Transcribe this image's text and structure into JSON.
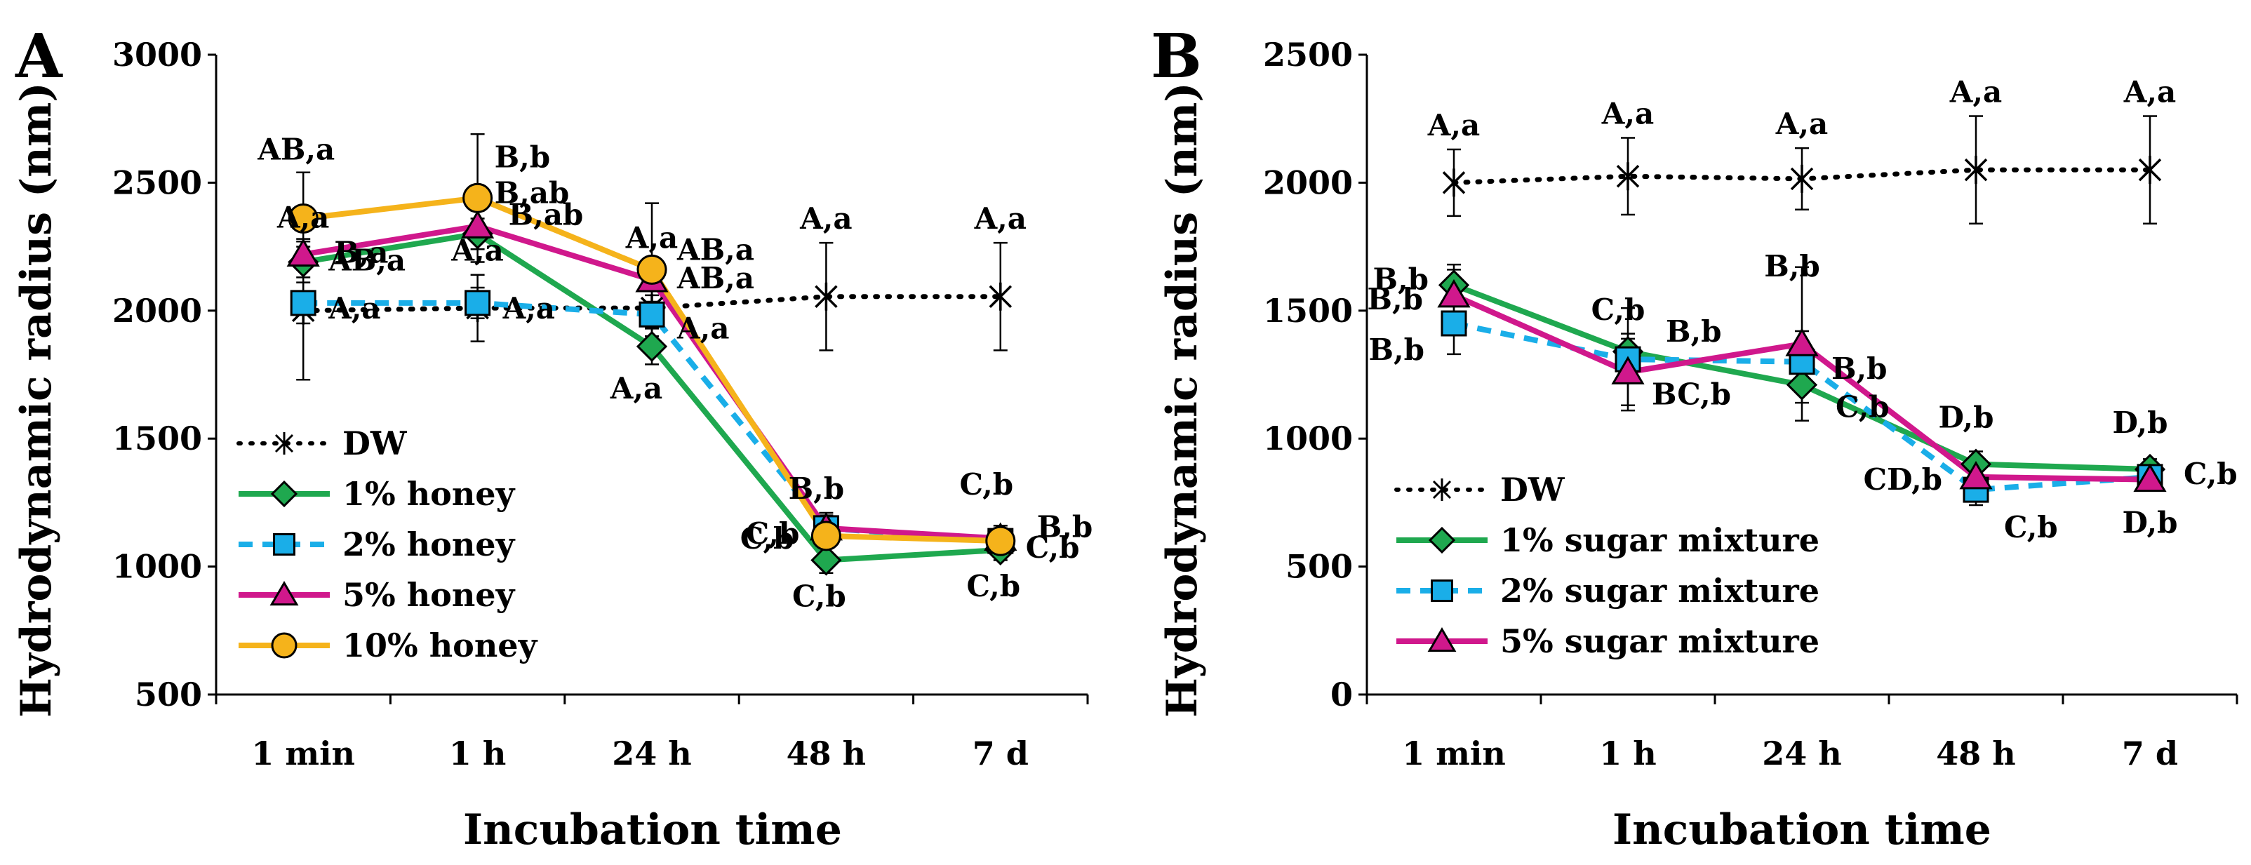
{
  "chart_data": [
    {
      "panel": "A",
      "type": "line",
      "xlabel": "Incubation time",
      "ylabel": "Hydrodynamic radius (nm)",
      "categories": [
        "1 min",
        "1 h",
        "24 h",
        "48 h",
        "7 d"
      ],
      "ylim": [
        500,
        3000
      ],
      "yticks": [
        500,
        1000,
        1500,
        2000,
        2500,
        3000
      ],
      "yticks_text": [
        "500",
        "1000",
        "1500",
        "2000",
        "2500",
        "3000"
      ],
      "grid": false,
      "legend_position": "bottom-left",
      "series": [
        {
          "name": "DW",
          "style": "dotted",
          "color": "#000000",
          "marker": "asterisk",
          "values": [
            2000,
            2010,
            2010,
            2055,
            2055
          ],
          "errors": [
            270,
            130,
            180,
            210,
            210
          ],
          "labels": [
            "A,a",
            "A,a",
            "A,a",
            "A,a",
            "A,a"
          ]
        },
        {
          "name": "1% honey",
          "style": "solid",
          "color": "#1fa84f",
          "marker": "diamond",
          "values": [
            2190,
            2300,
            1860,
            1025,
            1065
          ],
          "errors": [
            60,
            60,
            70,
            50,
            40
          ],
          "labels": [
            "AB,a",
            "B,ab",
            "A,a",
            "C,b",
            "C,b"
          ]
        },
        {
          "name": "2% honey",
          "style": "dashed",
          "color": "#1aaee8",
          "marker": "square",
          "values": [
            2030,
            2030,
            1985,
            1150,
            1100
          ],
          "errors": [
            80,
            60,
            50,
            60,
            40
          ],
          "labels": [
            "A,a",
            "A,a",
            "A,a",
            "C,b",
            "C,b"
          ]
        },
        {
          "name": "5% honey",
          "style": "solid",
          "color": "#d0188c",
          "marker": "triangle",
          "values": [
            2220,
            2330,
            2120,
            1150,
            1110
          ],
          "errors": [
            60,
            60,
            60,
            50,
            40
          ],
          "labels": [
            "B,a",
            "B,ab",
            "AB,a",
            "B,b",
            "B,b"
          ]
        },
        {
          "name": "10% honey",
          "style": "solid",
          "color": "#f5b31b",
          "marker": "circle",
          "values": [
            2360,
            2440,
            2160,
            1120,
            1100
          ],
          "errors": [
            180,
            250,
            260,
            70,
            60
          ],
          "labels": [
            "AB,a",
            "B,b",
            "AB,a",
            "C,b",
            "C,b"
          ]
        }
      ]
    },
    {
      "panel": "B",
      "type": "line",
      "xlabel": "Incubation time",
      "ylabel": "Hydrodynamic radius (nm)",
      "categories": [
        "1 min",
        "1 h",
        "24 h",
        "48 h",
        "7 d"
      ],
      "ylim": [
        0,
        2500
      ],
      "yticks": [
        0,
        500,
        1000,
        1500,
        2000,
        2500
      ],
      "yticks_text": [
        "0",
        "500",
        "1000",
        "1500",
        "2000",
        "2500"
      ],
      "grid": false,
      "legend_position": "bottom-left",
      "series": [
        {
          "name": "DW",
          "style": "dotted",
          "color": "#000000",
          "marker": "asterisk",
          "values": [
            2000,
            2025,
            2015,
            2050,
            2050
          ],
          "errors": [
            130,
            150,
            120,
            210,
            210
          ],
          "labels": [
            "A,a",
            "A,a",
            "A,a",
            "A,a",
            "A,a"
          ]
        },
        {
          "name": "1% sugar mixture",
          "style": "solid",
          "color": "#1fa84f",
          "marker": "diamond",
          "values": [
            1600,
            1340,
            1210,
            900,
            880
          ],
          "errors": [
            80,
            70,
            70,
            50,
            40
          ],
          "labels": [
            "B,b",
            "B,b",
            "C,b",
            "D,b",
            "D,b"
          ]
        },
        {
          "name": "2% sugar mixture",
          "style": "dashed",
          "color": "#1aaee8",
          "marker": "square",
          "values": [
            1450,
            1310,
            1300,
            800,
            850
          ],
          "errors": [
            120,
            200,
            120,
            60,
            50
          ],
          "labels": [
            "B,b",
            "C,b",
            "B,b",
            "C,b",
            "C,b"
          ]
        },
        {
          "name": "5% sugar mixture",
          "style": "solid",
          "color": "#d0188c",
          "marker": "triangle",
          "values": [
            1560,
            1260,
            1370,
            850,
            840
          ],
          "errors": [
            100,
            130,
            300,
            80,
            40
          ],
          "labels": [
            "B,b",
            "BC,b",
            "B,b",
            "CD,b",
            "D,b"
          ]
        }
      ]
    }
  ]
}
